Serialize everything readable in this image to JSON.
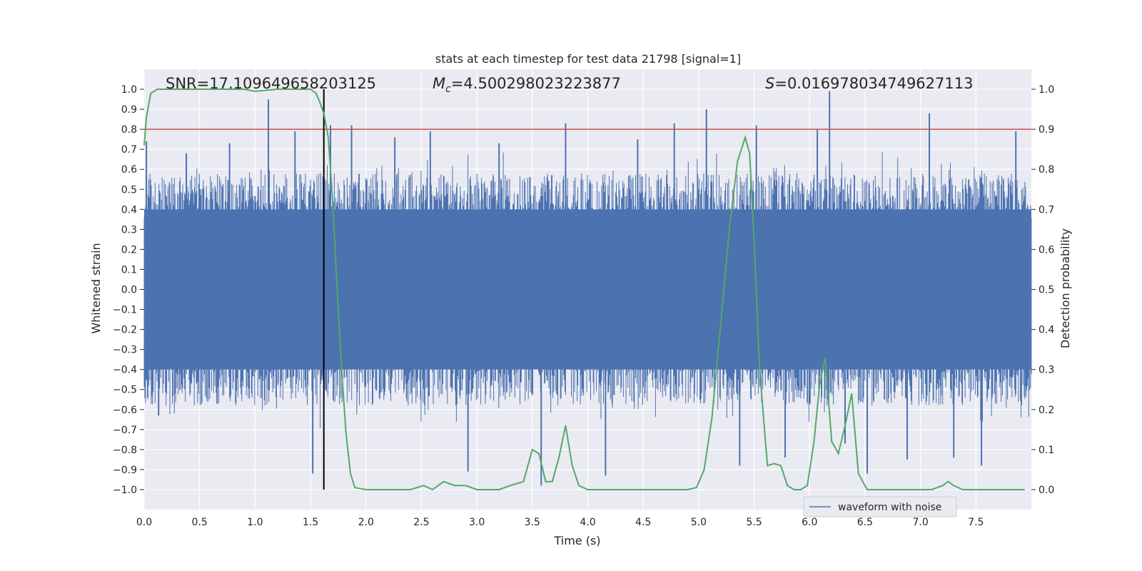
{
  "chart_data": {
    "type": "line",
    "title": "stats at each timestep for test data 21798 [signal=1]",
    "xlabel": "Time (s)",
    "ylabel": "Whitened strain",
    "y2label": "Detection probability",
    "xlim": [
      0,
      8
    ],
    "ylim": [
      -1.1,
      1.1
    ],
    "y2lim": [
      -0.05,
      1.05
    ],
    "x_ticks": [
      "0.0",
      "0.5",
      "1.0",
      "1.5",
      "2.0",
      "2.5",
      "3.0",
      "3.5",
      "4.0",
      "4.5",
      "5.0",
      "5.5",
      "6.0",
      "6.5",
      "7.0",
      "7.5"
    ],
    "y_ticks": [
      "−1.0",
      "−0.9",
      "−0.8",
      "−0.7",
      "−0.6",
      "−0.5",
      "−0.4",
      "−0.3",
      "−0.2",
      "−0.1",
      "0.0",
      "0.1",
      "0.2",
      "0.3",
      "0.4",
      "0.5",
      "0.6",
      "0.7",
      "0.8",
      "0.9",
      "1.0"
    ],
    "y2_ticks": [
      "0.0",
      "0.1",
      "0.2",
      "0.3",
      "0.4",
      "0.5",
      "0.6",
      "0.7",
      "0.8",
      "0.9",
      "1.0"
    ],
    "grid": true,
    "legend_position": "lower-right",
    "annotations": {
      "snr": "SNR=17.109649658203125",
      "mc_symbol": "M",
      "mc_subscript": "c",
      "mc_value": "=4.500298023223877",
      "s_symbol": "S",
      "s_value": "=0.016978034749627113"
    },
    "series": [
      {
        "name": "waveform with noise",
        "axis": "left",
        "color": "#4c72b0",
        "kind": "noise envelope",
        "band": [
          -0.4,
          0.4
        ],
        "peak_times": [
          0.02,
          0.13,
          0.38,
          0.77,
          1.12,
          1.36,
          1.52,
          1.68,
          1.87,
          2.26,
          2.58,
          2.92,
          3.2,
          3.58,
          3.8,
          4.16,
          4.45,
          4.78,
          5.07,
          5.37,
          5.52,
          5.78,
          6.07,
          6.18,
          6.32,
          6.52,
          6.88,
          7.08,
          7.3,
          7.55,
          7.86
        ],
        "peak_values": [
          0.74,
          -0.63,
          0.68,
          0.73,
          0.95,
          0.79,
          -0.92,
          0.82,
          0.82,
          0.76,
          0.79,
          -0.91,
          0.73,
          -0.98,
          0.83,
          -0.93,
          0.75,
          0.83,
          0.9,
          -0.88,
          0.82,
          -0.84,
          0.8,
          0.99,
          -0.77,
          -0.92,
          -0.85,
          0.88,
          -0.84,
          -0.88,
          0.79
        ]
      },
      {
        "name": "",
        "axis": "right",
        "color": "#55a868",
        "x": [
          0.0,
          0.02,
          0.06,
          0.12,
          0.5,
          0.9,
          1.0,
          1.2,
          1.4,
          1.5,
          1.55,
          1.58,
          1.62,
          1.66,
          1.7,
          1.74,
          1.78,
          1.82,
          1.86,
          1.9,
          2.0,
          2.1,
          2.25,
          2.4,
          2.52,
          2.6,
          2.7,
          2.8,
          2.9,
          3.0,
          3.1,
          3.2,
          3.3,
          3.42,
          3.5,
          3.56,
          3.62,
          3.68,
          3.74,
          3.8,
          3.86,
          3.92,
          4.0,
          4.15,
          4.3,
          4.5,
          4.7,
          4.9,
          4.98,
          5.05,
          5.12,
          5.2,
          5.28,
          5.35,
          5.42,
          5.46,
          5.5,
          5.55,
          5.62,
          5.68,
          5.74,
          5.8,
          5.86,
          5.92,
          5.98,
          6.04,
          6.09,
          6.14,
          6.2,
          6.26,
          6.32,
          6.38,
          6.44,
          6.52,
          6.6,
          6.7,
          6.85,
          7.0,
          7.1,
          7.2,
          7.25,
          7.3,
          7.38,
          7.6,
          7.94
        ],
        "y": [
          0.86,
          0.93,
          0.99,
          1.0,
          1.0,
          1.0,
          0.995,
          1.0,
          1.0,
          1.0,
          0.99,
          0.97,
          0.94,
          0.88,
          0.72,
          0.5,
          0.3,
          0.14,
          0.04,
          0.005,
          0.0,
          0.0,
          0.0,
          0.0,
          0.01,
          0.0,
          0.02,
          0.01,
          0.01,
          0.0,
          0.0,
          0.0,
          0.01,
          0.02,
          0.1,
          0.09,
          0.02,
          0.02,
          0.08,
          0.16,
          0.06,
          0.01,
          0.0,
          0.0,
          0.0,
          0.0,
          0.0,
          0.0,
          0.005,
          0.05,
          0.18,
          0.42,
          0.66,
          0.82,
          0.88,
          0.84,
          0.62,
          0.3,
          0.06,
          0.065,
          0.06,
          0.01,
          0.0,
          0.0,
          0.01,
          0.12,
          0.26,
          0.33,
          0.12,
          0.09,
          0.16,
          0.24,
          0.04,
          0.0,
          0.0,
          0.0,
          0.0,
          0.0,
          0.0,
          0.01,
          0.02,
          0.01,
          0.0,
          0.0,
          0.0
        ]
      }
    ],
    "markers": {
      "threshold_line": {
        "value": 0.9,
        "axis": "right",
        "color": "#c44e52"
      },
      "event_time_line": {
        "value": 1.62,
        "axis": "x",
        "color": "#000000"
      }
    }
  }
}
